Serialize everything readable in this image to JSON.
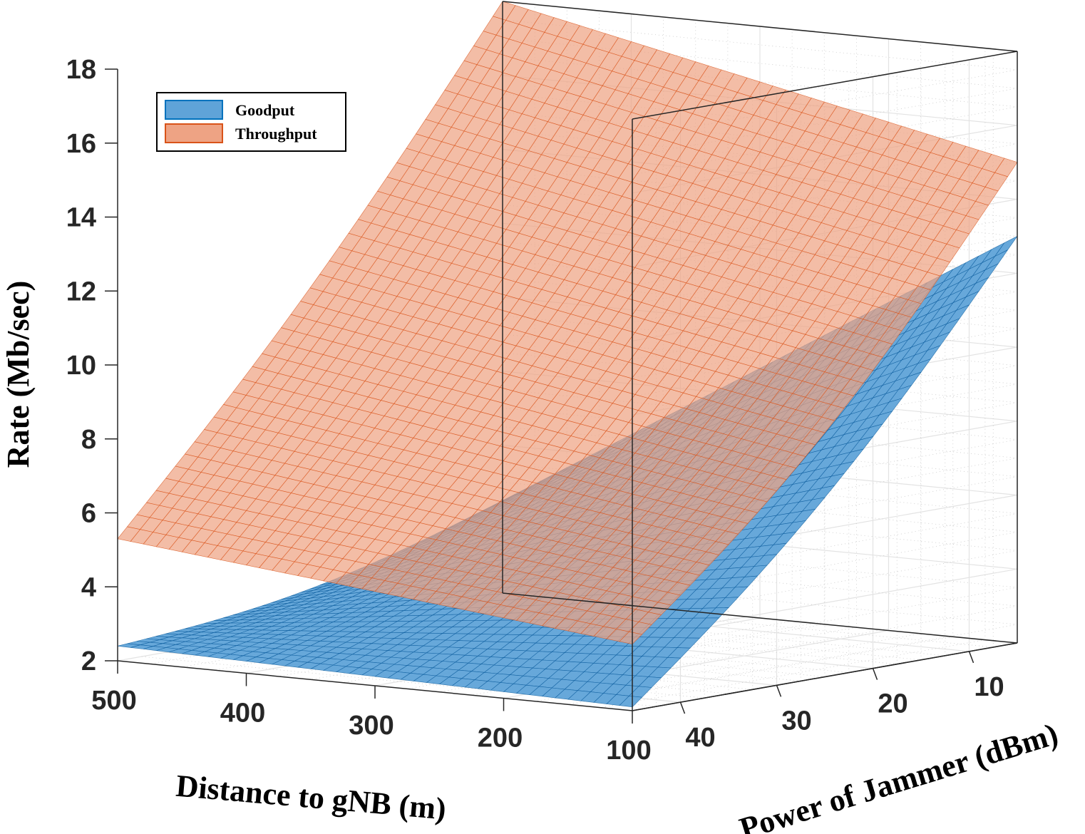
{
  "chart_data": {
    "type": "surface3d",
    "x": {
      "label": "Distance to gNB (m)",
      "ticks": [
        500,
        400,
        300,
        200,
        100
      ],
      "range": [
        100,
        500
      ]
    },
    "y": {
      "label": "Power of Jammer (dBm)",
      "ticks": [
        40,
        30,
        20,
        10
      ],
      "range": [
        5,
        45
      ]
    },
    "z": {
      "label": "Rate (Mb/sec)",
      "ticks": [
        2,
        4,
        6,
        8,
        10,
        12,
        14,
        16,
        18
      ],
      "range": [
        2,
        18
      ]
    },
    "legend": {
      "position": "top-left",
      "entries": [
        "Goodput",
        "Throughput"
      ]
    },
    "series": [
      {
        "name": "Goodput",
        "color": "#0072BD",
        "edge_color": "#0B5C9E",
        "corners": {
          "d500_p45": 2.4,
          "d100_p45": 2.1,
          "d500_p5": 4.5,
          "d100_p5": 13.0
        }
      },
      {
        "name": "Throughput",
        "color": "#D95319",
        "edge_color": "#D95319",
        "corners": {
          "d500_p45": 5.3,
          "d100_p45": 3.8,
          "d500_p5": 18.0,
          "d100_p5": 15.0
        }
      }
    ]
  }
}
